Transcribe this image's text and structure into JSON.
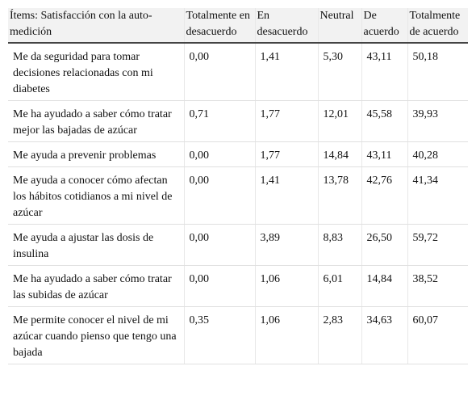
{
  "columns": [
    "Ítems: Satisfacción con la auto-medición",
    "Totalmente en desacuerdo",
    "En desacuerdo",
    "Neutral",
    "De acuerdo",
    "Totalmente de acuerdo"
  ],
  "rows": [
    {
      "item": "Me da seguridad para tomar decisiones relacionadas con mi diabetes",
      "values": [
        "0,00",
        "1,41",
        "5,30",
        "43,11",
        "50,18"
      ]
    },
    {
      "item": "Me ha ayudado a saber cómo tratar mejor las bajadas de azúcar",
      "values": [
        "0,71",
        "1,77",
        "12,01",
        "45,58",
        "39,93"
      ]
    },
    {
      "item": "Me ayuda a prevenir problemas",
      "values": [
        "0,00",
        "1,77",
        "14,84",
        "43,11",
        "40,28"
      ]
    },
    {
      "item": "Me ayuda a conocer cómo afectan los hábitos cotidianos a mi nivel de azúcar",
      "values": [
        "0,00",
        "1,41",
        "13,78",
        "42,76",
        "41,34"
      ]
    },
    {
      "item": "Me ayuda a ajustar las dosis de insulina",
      "values": [
        "0,00",
        "3,89",
        "8,83",
        "26,50",
        "59,72"
      ]
    },
    {
      "item": "Me ha ayudado a saber cómo tratar las subidas de azúcar",
      "values": [
        "0,00",
        "1,06",
        "6,01",
        "14,84",
        "38,52"
      ]
    },
    {
      "item": "Me permite conocer el nivel de mi azúcar cuando pienso que tengo una bajada",
      "values": [
        "0,35",
        "1,06",
        "2,83",
        "34,63",
        "60,07"
      ]
    }
  ]
}
